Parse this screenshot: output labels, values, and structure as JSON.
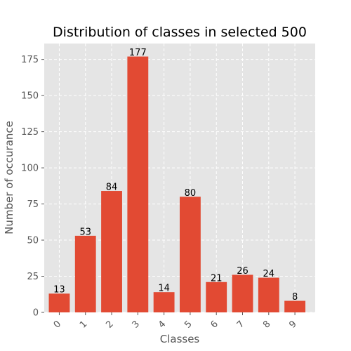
{
  "chart_data": {
    "type": "bar",
    "title": "Distribution of classes in selected 500",
    "xlabel": "Classes",
    "ylabel": "Number of occurance",
    "categories": [
      "0",
      "1",
      "2",
      "3",
      "4",
      "5",
      "6",
      "7",
      "8",
      "9"
    ],
    "values": [
      13,
      53,
      84,
      177,
      14,
      80,
      21,
      26,
      24,
      8
    ],
    "ylim": [
      0,
      186
    ],
    "yticks": [
      0,
      25,
      50,
      75,
      100,
      125,
      150,
      175
    ],
    "grid": true,
    "bar_color": "#E24A33",
    "background_color": "#E5E5E5",
    "grid_color": "#FFFFFF"
  }
}
